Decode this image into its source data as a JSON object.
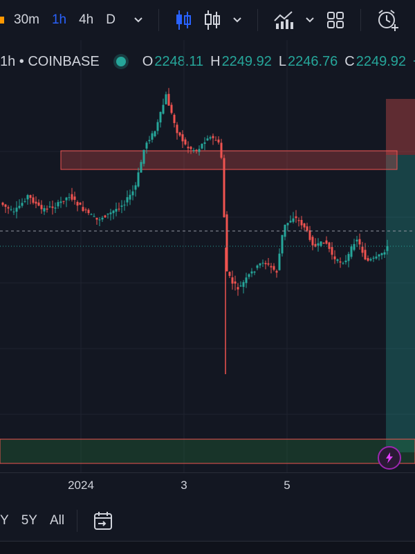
{
  "toolbar": {
    "timeframes": [
      {
        "label": "30m",
        "active": false
      },
      {
        "label": "1h",
        "active": true
      },
      {
        "label": "4h",
        "active": false
      },
      {
        "label": "D",
        "active": false
      }
    ]
  },
  "legend": {
    "symbol": "1h • COINBASE",
    "open_key": "O",
    "open": "2248.11",
    "high_key": "H",
    "high": "2249.92",
    "low_key": "L",
    "low": "2246.76",
    "close_key": "C",
    "close": "2249.92",
    "change": "+"
  },
  "x_axis": {
    "labels": [
      "2024",
      "3",
      "5"
    ]
  },
  "bottom": {
    "ranges": [
      "Y",
      "5Y",
      "All"
    ]
  },
  "colors": {
    "background": "#131722",
    "up": "#26a69a",
    "down": "#ef5350",
    "accent": "#2962ff",
    "text": "#d1d4dc"
  },
  "chart_data": {
    "type": "candlestick",
    "series": [
      {
        "name": "price_path",
        "values": [
          2290,
          2286,
          2280,
          2278,
          2272,
          2268,
          2264,
          2262,
          2260,
          2258,
          2256,
          2254,
          2252,
          2250,
          2252,
          2256,
          2262,
          2270,
          2278,
          2286,
          2292,
          2300,
          2304,
          2306,
          2302,
          2296,
          2292,
          2294,
          2300,
          2308,
          2316,
          2322,
          2324,
          2322,
          2318,
          2314,
          2316,
          2318,
          2320,
          2318,
          2316,
          2318,
          2314,
          2310,
          2312,
          2316,
          2318,
          2316,
          2314,
          2310,
          2308,
          2306,
          2304,
          2306,
          2310,
          2314,
          2310,
          2304,
          2298,
          2292,
          2288,
          2286,
          2288,
          2284,
          2280,
          2278,
          2276,
          2274,
          2272,
          2270,
          2268,
          2266,
          2264,
          2262,
          2258,
          2256,
          2254,
          2250,
          2246,
          2244,
          2240,
          2238,
          2236,
          2238,
          2240,
          2243,
          2246,
          2249,
          2249.92
        ]
      }
    ],
    "zones": [
      "resistance",
      "support",
      "long-position"
    ]
  }
}
